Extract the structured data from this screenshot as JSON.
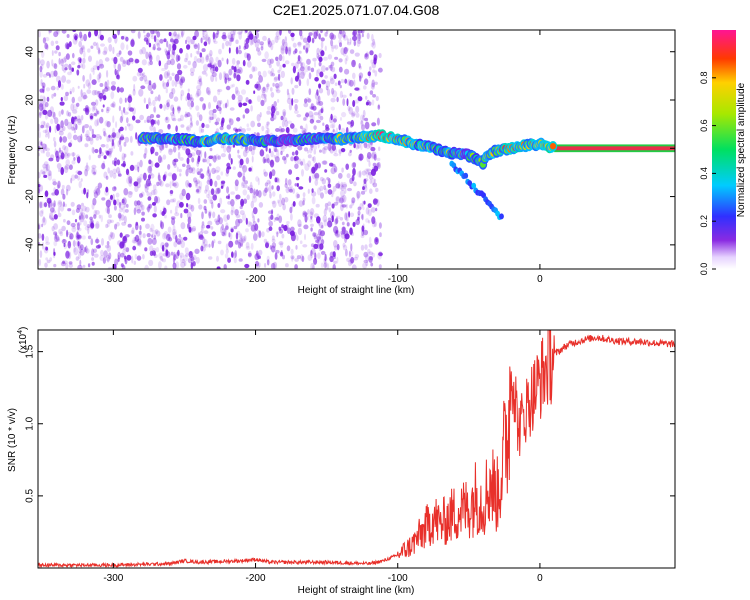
{
  "title": "C2E1.2025.071.07.04.G08",
  "colors": {
    "snr_line": "#e8302a",
    "ridge_core": "#e8304a",
    "ridge_edge": "#22cc44",
    "scatter": "#7a1ee0"
  },
  "chart_data": [
    {
      "type": "heatmap",
      "xlabel": "Height of straight line (km)",
      "ylabel": "Frequency (Hz)",
      "xlim": [
        -353,
        95
      ],
      "ylim": [
        -50,
        49
      ],
      "xticks": [
        -300,
        -200,
        -100,
        0
      ],
      "xtick_labels": [
        "-300",
        "-200",
        "-100",
        "0"
      ],
      "yticks": [
        -40,
        -20,
        0,
        20,
        40
      ],
      "ytick_labels": [
        "-40",
        "-20",
        "0",
        "20",
        "40"
      ],
      "grid": false,
      "colorbar": {
        "label": "Normalized spectral amplitude",
        "range": [
          0.0,
          1.0
        ],
        "ticks": [
          0.0,
          0.2,
          0.4,
          0.6,
          0.8
        ],
        "tick_labels": [
          "0.0",
          "0.2",
          "0.4",
          "0.6",
          "0.8"
        ]
      },
      "ridge": {
        "x": [
          -280,
          -260,
          -240,
          -220,
          -200,
          -180,
          -160,
          -140,
          -120,
          -110,
          -100,
          -90,
          -80,
          -70,
          -60,
          -50,
          -40,
          -35,
          -30,
          -20,
          -10,
          0,
          10,
          95
        ],
        "frequency": [
          4,
          4,
          3,
          4,
          3,
          3,
          4,
          4,
          5,
          5,
          4,
          2,
          1,
          -1,
          -2,
          -3,
          -6,
          -2,
          -1,
          0,
          1,
          2,
          0,
          0
        ],
        "amplitude": [
          0.45,
          0.55,
          0.6,
          0.7,
          0.55,
          0.4,
          0.5,
          0.6,
          0.75,
          0.85,
          0.75,
          0.65,
          0.6,
          0.65,
          0.55,
          0.5,
          0.7,
          0.6,
          0.7,
          0.8,
          0.75,
          0.8,
          0.95,
          0.95
        ]
      },
      "noise_region_x": [
        -353,
        -112
      ]
    },
    {
      "type": "line",
      "xlabel": "Height of straight line (km)",
      "ylabel": "SNR (10 * v/v)",
      "y_multiplier": "(x10",
      "y_multiplier_exp": "4",
      "y_multiplier_close": ")",
      "xlim": [
        -353,
        95
      ],
      "ylim": [
        0,
        1.65
      ],
      "xticks": [
        -300,
        -200,
        -100,
        0
      ],
      "xtick_labels": [
        "-300",
        "-200",
        "-100",
        "0"
      ],
      "yticks": [
        0.5,
        1.0,
        1.5
      ],
      "ytick_labels": [
        "0.5",
        "1.0",
        "1.5"
      ],
      "grid": false,
      "series": [
        {
          "x": [
            -353,
            -300,
            -260,
            -250,
            -240,
            -210,
            -200,
            -190,
            -150,
            -120,
            -110,
            -100,
            -90,
            -80,
            -75,
            -70,
            -60,
            -50,
            -45,
            -40,
            -35,
            -30,
            -25,
            -22,
            -20,
            -15,
            -10,
            -5,
            0,
            5,
            10,
            20,
            30,
            40,
            50,
            60,
            70,
            80,
            95
          ],
          "y": [
            0.02,
            0.02,
            0.03,
            0.05,
            0.04,
            0.05,
            0.06,
            0.04,
            0.04,
            0.03,
            0.05,
            0.09,
            0.16,
            0.28,
            0.35,
            0.3,
            0.38,
            0.42,
            0.5,
            0.45,
            0.6,
            0.5,
            0.8,
            1.0,
            1.45,
            0.95,
            1.1,
            1.2,
            1.3,
            1.4,
            1.48,
            1.55,
            1.58,
            1.6,
            1.58,
            1.57,
            1.57,
            1.56,
            1.55
          ]
        }
      ]
    }
  ]
}
